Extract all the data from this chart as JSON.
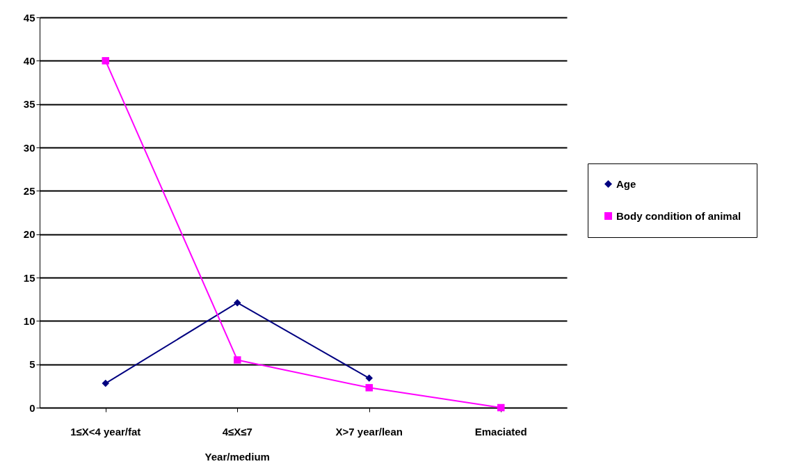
{
  "chart_data": {
    "type": "line",
    "categories": [
      "1≤X<4 year/fat",
      "4≤X≤7\nYear/medium",
      "X>7 year/lean",
      "Emaciated"
    ],
    "series": [
      {
        "name": "Age",
        "color": "#000080",
        "marker": "diamond",
        "values": [
          2.8,
          12.1,
          3.4,
          null
        ]
      },
      {
        "name": "Body condition of animal",
        "color": "#ff00ff",
        "marker": "square",
        "values": [
          40,
          5.5,
          2.3,
          0
        ]
      }
    ],
    "ylim": [
      0,
      45
    ],
    "yticks": [
      0,
      5,
      10,
      15,
      20,
      25,
      30,
      35,
      40,
      45
    ],
    "grid": "y",
    "legend": "right",
    "line_style": "solid"
  }
}
